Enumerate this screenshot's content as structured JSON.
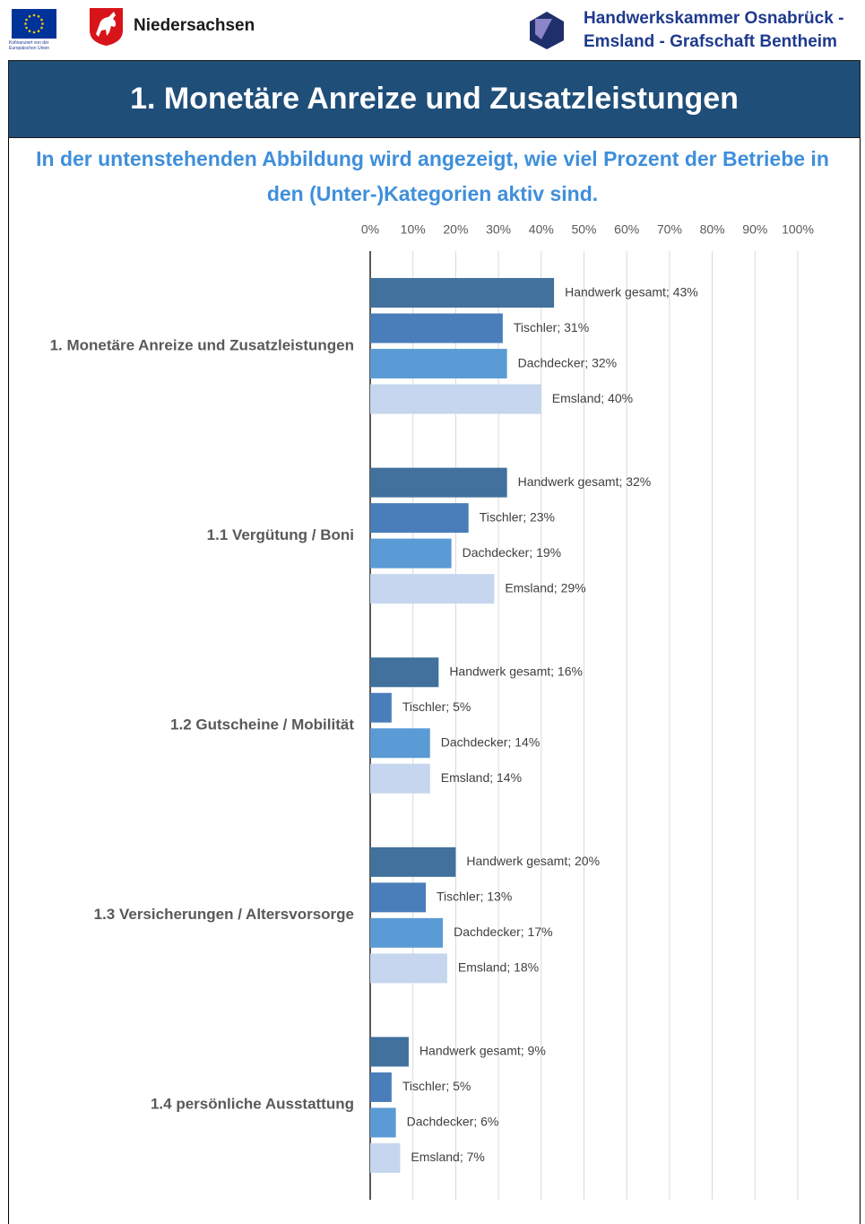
{
  "header": {
    "eu_caption": "Kofinanziert von der Europäischen Union",
    "state": "Niedersachsen",
    "chamber_line1": "Handwerkskammer Osnabrück -",
    "chamber_line2": "Emsland - Grafschaft Bentheim"
  },
  "title": "1. Monetäre Anreize und Zusatzleistungen",
  "subtitle": "In der untenstehenden Abbildung wird angezeigt, wie viel Prozent der Betriebe in den (Unter-)Kategorien aktiv sind.",
  "chart_data": {
    "type": "hbar",
    "categories": [
      "1. Monetäre Anreize und Zusatzleistungen",
      "1.1 Vergütung / Boni",
      "1.2 Gutscheine / Mobilität",
      "1.3 Versicherungen / Altersvorsorge",
      "1.4 persönliche Ausstattung"
    ],
    "series": [
      {
        "name": "Handwerk gesamt",
        "color": "#41719c",
        "values": [
          43,
          32,
          16,
          20,
          9
        ],
        "value_labels": [
          "Handwerk gesamt; 43%",
          "Handwerk gesamt; 32%",
          "Handwerk gesamt; 16%",
          "Handwerk gesamt; 20%",
          "Handwerk gesamt; 9%"
        ]
      },
      {
        "name": "Tischler",
        "color": "#4a7ebb",
        "values": [
          31,
          23,
          5,
          13,
          5
        ],
        "value_labels": [
          "Tischler; 31%",
          "Tischler; 23%",
          "Tischler; 5%",
          "Tischler; 13%",
          "Tischler; 5%"
        ]
      },
      {
        "name": "Dachdecker",
        "color": "#5b9bd5",
        "values": [
          32,
          19,
          14,
          17,
          6
        ],
        "value_labels": [
          "Dachdecker; 32%",
          "Dachdecker; 19%",
          "Dachdecker; 14%",
          "Dachdecker; 17%",
          "Dachdecker; 6%"
        ]
      },
      {
        "name": "Emsland",
        "color": "#c5d6ee",
        "values": [
          40,
          29,
          14,
          18,
          7
        ],
        "value_labels": [
          "Emsland; 40%",
          "Emsland; 29%",
          "Emsland; 14%",
          "Emsland; 18%",
          "Emsland; 7%"
        ]
      }
    ],
    "xlim": [
      0,
      100
    ],
    "xticks": [
      {
        "value": 0,
        "label": "0%"
      },
      {
        "value": 10,
        "label": "10%"
      },
      {
        "value": 20,
        "label": "20%"
      },
      {
        "value": 30,
        "label": "30%"
      },
      {
        "value": 40,
        "label": "40%"
      },
      {
        "value": 50,
        "label": "50%"
      },
      {
        "value": 60,
        "label": "60%"
      },
      {
        "value": 70,
        "label": "70%"
      },
      {
        "value": 80,
        "label": "80%"
      },
      {
        "value": 90,
        "label": "90%"
      },
      {
        "value": 100,
        "label": "100%"
      }
    ],
    "grid": true
  }
}
